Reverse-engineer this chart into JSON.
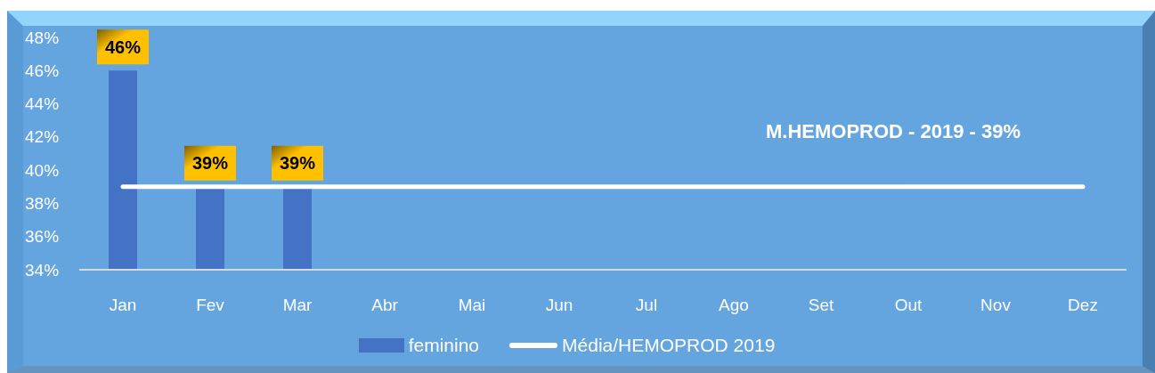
{
  "chart_data": {
    "type": "bar",
    "categories": [
      "Jan",
      "Fev",
      "Mar",
      "Abr",
      "Mai",
      "Jun",
      "Jul",
      "Ago",
      "Set",
      "Out",
      "Nov",
      "Dez"
    ],
    "series": [
      {
        "name": "feminino",
        "color": "#4472c4",
        "values": [
          46,
          39,
          39,
          null,
          null,
          null,
          null,
          null,
          null,
          null,
          null,
          null
        ],
        "value_labels": [
          "46%",
          "39%",
          "39%",
          null,
          null,
          null,
          null,
          null,
          null,
          null,
          null,
          null
        ]
      },
      {
        "name": "Média/HEMOPROD 2019",
        "type": "line",
        "color": "#ffffff",
        "values": [
          39,
          39,
          39,
          39,
          39,
          39,
          39,
          39,
          39,
          39,
          39,
          39
        ]
      }
    ],
    "ylim": [
      34,
      48
    ],
    "yticks": [
      {
        "value": 34,
        "label": "34%"
      },
      {
        "value": 36,
        "label": "36%"
      },
      {
        "value": 38,
        "label": "38%"
      },
      {
        "value": 40,
        "label": "40%"
      },
      {
        "value": 42,
        "label": "42%"
      },
      {
        "value": 44,
        "label": "44%"
      },
      {
        "value": 46,
        "label": "46%"
      },
      {
        "value": 48,
        "label": "48%"
      }
    ],
    "legend": "bottom",
    "annotations": [
      "M.HEMOPROD - 2019 - 39%"
    ]
  }
}
